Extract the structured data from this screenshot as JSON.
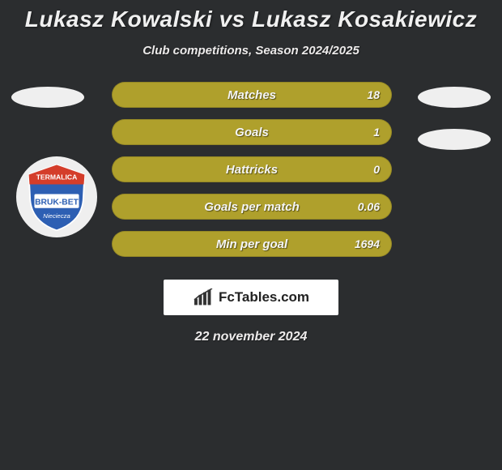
{
  "title": "Lukasz Kowalski vs Lukasz Kosakiewicz",
  "subtitle": "Club competitions, Season 2024/2025",
  "date": "22 november 2024",
  "footer_brand": "FcTables.com",
  "colors": {
    "background": "#2b2d2f",
    "bar_fill": "#afa02c",
    "bar_track": "#afa02c",
    "ellipse": "#efefef",
    "text": "#f5f5f5"
  },
  "stats": [
    {
      "label": "Matches",
      "value": "18",
      "fill_pct": 100
    },
    {
      "label": "Goals",
      "value": "1",
      "fill_pct": 100
    },
    {
      "label": "Hattricks",
      "value": "0",
      "fill_pct": 100
    },
    {
      "label": "Goals per match",
      "value": "0.06",
      "fill_pct": 100
    },
    {
      "label": "Min per goal",
      "value": "1694",
      "fill_pct": 100
    }
  ],
  "badge": {
    "top_text": "TERMALICA",
    "bottom_text": "BRUK-BET",
    "sub_text": "Nieciecza",
    "colors": {
      "top": "#d43d2a",
      "mid": "#2d5fb3",
      "stripe": "#ffffff"
    }
  }
}
